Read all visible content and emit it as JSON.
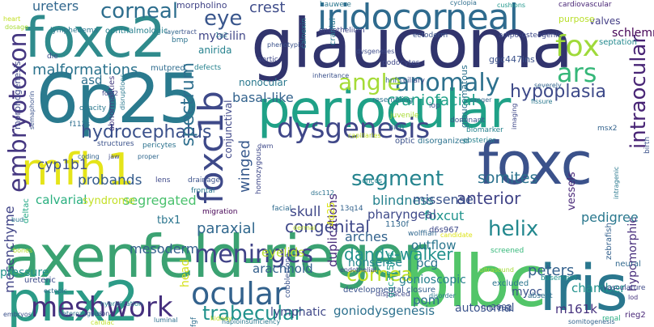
{
  "words": [
    {
      "text": "axenfeld-rieger",
      "color": "#3ba272"
    },
    {
      "text": "glaucoma",
      "color": "#31346d"
    },
    {
      "text": "6p25",
      "color": "#2a7a8e"
    },
    {
      "text": "foxc2",
      "color": "#2f8b8c"
    },
    {
      "text": "pitx2",
      "color": "#2c9b87"
    },
    {
      "text": "periocular",
      "color": "#1fa187"
    },
    {
      "text": "blbc",
      "color": "#52c569"
    },
    {
      "text": "iris",
      "color": "#2a778e"
    },
    {
      "text": "foxc",
      "color": "#3b528b"
    },
    {
      "text": "mfh1",
      "color": "#e5e419"
    },
    {
      "text": "iridocorneal",
      "color": "#2f6b8e"
    },
    {
      "text": "foxc1b",
      "color": "#3e4989"
    },
    {
      "text": "meshwork",
      "color": "#46307e"
    },
    {
      "text": "ocular",
      "color": "#33628d"
    },
    {
      "text": "dysgenesis",
      "color": "#3f4788"
    },
    {
      "text": "anomaly",
      "color": "#2d718e"
    },
    {
      "text": "meninges",
      "color": "#404387"
    },
    {
      "text": "embryotoxon",
      "color": "#453781"
    },
    {
      "text": "corneal",
      "color": "#2e6e8e"
    },
    {
      "text": "fox",
      "color": "#9fda3a"
    },
    {
      "text": "ars",
      "color": "#35b779"
    },
    {
      "text": "angle",
      "color": "#a5db36"
    },
    {
      "text": "eye",
      "color": "#39568c"
    },
    {
      "text": "segment",
      "color": "#25848e"
    },
    {
      "text": "cornea",
      "color": "#bddf26"
    },
    {
      "text": "hydrocephalus",
      "color": "#3b518b"
    },
    {
      "text": "intraocular",
      "color": "#482475"
    },
    {
      "text": "hypoplasia",
      "color": "#3e4a89"
    },
    {
      "text": "malformations",
      "color": "#2c738e"
    },
    {
      "text": "spectrum",
      "color": "#2e6f8e"
    },
    {
      "text": "congenital",
      "color": "#3f4889"
    },
    {
      "text": "paraxial",
      "color": "#31688e"
    },
    {
      "text": "trabecular",
      "color": "#20928c"
    },
    {
      "text": "helix",
      "color": "#23888e"
    },
    {
      "text": "dandy-walker",
      "color": "#21918c"
    },
    {
      "text": "anterior",
      "color": "#414487"
    },
    {
      "text": "somites",
      "color": "#2c728e"
    },
    {
      "text": "crest",
      "color": "#3e4c8a"
    },
    {
      "text": "peters",
      "color": "#34618d"
    },
    {
      "text": "winged",
      "color": "#37598c"
    },
    {
      "text": "skull",
      "color": "#3f4788"
    },
    {
      "text": "craniofacial",
      "color": "#1fa088"
    },
    {
      "text": "basal-like",
      "color": "#33638d"
    },
    {
      "text": "blindness",
      "color": "#26828e"
    },
    {
      "text": "cyp1b1",
      "color": "#3d4e8a"
    },
    {
      "text": "probands",
      "color": "#365d8d"
    },
    {
      "text": "calvarial",
      "color": "#29af7f"
    },
    {
      "text": "segregated",
      "color": "#4ac16d"
    },
    {
      "text": "pedigree",
      "color": "#2a788e"
    },
    {
      "text": "missense",
      "color": "#3a538b"
    },
    {
      "text": "foxcut",
      "color": "#20938c"
    },
    {
      "text": "schlemm",
      "color": "#440154"
    },
    {
      "text": "myocilin",
      "color": "#404688"
    },
    {
      "text": "asd",
      "color": "#2d708e"
    },
    {
      "text": "ureters",
      "color": "#31678e"
    },
    {
      "text": "mesenchyme",
      "color": "#414487"
    },
    {
      "text": "mesoderm",
      "color": "#34608d"
    },
    {
      "text": "arachnoid",
      "color": "#35608d"
    },
    {
      "text": "eyelids",
      "color": "#b5de2b"
    },
    {
      "text": "pharyngeal",
      "color": "#3e4989"
    },
    {
      "text": "arches",
      "color": "#33638d"
    },
    {
      "text": "outflow",
      "color": "#2a768e"
    },
    {
      "text": "nonsense",
      "color": "#25858e"
    },
    {
      "text": "pcg",
      "color": "#2b748e"
    },
    {
      "text": "duplications",
      "color": "#472c7a"
    },
    {
      "text": "gonioscopic",
      "color": "#27808e"
    },
    {
      "text": "autosomal",
      "color": "#3a538b"
    },
    {
      "text": "goniodysgenesis",
      "color": "#2d718e"
    },
    {
      "text": "lymphatic",
      "color": "#3f4788"
    },
    {
      "text": "myoc",
      "color": "#3b528b"
    },
    {
      "text": "chamber",
      "color": "#21918c"
    },
    {
      "text": "pom",
      "color": "#2e6e8e"
    },
    {
      "text": "m161k",
      "color": "#46327e"
    },
    {
      "text": "hypomorphic",
      "color": "#472d7b"
    },
    {
      "text": "pressure",
      "color": "#21918c"
    },
    {
      "text": "head",
      "color": "#d5e21a"
    },
    {
      "text": "tbx1",
      "color": "#2b758e"
    },
    {
      "text": "syndrome",
      "color": "#c2df23"
    },
    {
      "text": "nonocular",
      "color": "#2a788e"
    },
    {
      "text": "anirida",
      "color": "#26828e"
    },
    {
      "text": "conjunctival",
      "color": "#3f4889"
    },
    {
      "text": "vessels",
      "color": "#482878"
    },
    {
      "text": "valves",
      "color": "#433e85"
    },
    {
      "text": "purpose",
      "color": "#b8de29"
    },
    {
      "text": "morpholino",
      "color": "#414487"
    },
    {
      "text": "4q25",
      "color": "#d8e219"
    },
    {
      "text": "d6s967",
      "color": "#3e4989"
    },
    {
      "text": "1130f",
      "color": "#31688e"
    },
    {
      "text": "zebrafish",
      "color": "#34618d"
    },
    {
      "text": "ggc447ins",
      "color": "#3b528b"
    },
    {
      "text": "ggc375ins",
      "color": "#1f9e89"
    },
    {
      "text": "glaucomatous",
      "color": "#2c728e"
    },
    {
      "text": "deltac",
      "color": "#22a884"
    },
    {
      "text": "ophthalmologic",
      "color": "#27808e"
    },
    {
      "text": "lymphedema",
      "color": "#2a768e"
    },
    {
      "text": "nn2002",
      "color": "#3c4f8a"
    },
    {
      "text": "ectopic",
      "color": "#2f6c8e"
    },
    {
      "text": "ureteric",
      "color": "#3e4c8a"
    },
    {
      "text": "cardiovascular",
      "color": "#482576"
    },
    {
      "text": "cushions",
      "color": "#1f978b"
    },
    {
      "text": "hauwere",
      "color": "#2a768e"
    },
    {
      "text": "excluded",
      "color": "#2b748e"
    },
    {
      "text": "absent",
      "color": "#2e6f8e"
    },
    {
      "text": "basement",
      "color": "#20938c"
    },
    {
      "text": "developmental",
      "color": "#3a538b"
    },
    {
      "text": "closure",
      "color": "#34618d"
    },
    {
      "text": "septation",
      "color": "#23898e"
    },
    {
      "text": "morphogenesis",
      "color": "#3f4788"
    },
    {
      "text": "abnormalities",
      "color": "#44397f"
    },
    {
      "text": "embryos",
      "color": "#3b518b"
    },
    {
      "text": "renal",
      "color": "#27ad81"
    },
    {
      "text": "neural",
      "color": "#31688e"
    },
    {
      "text": "vasculature",
      "color": "#3e4989"
    },
    {
      "text": "lod",
      "color": "#46337e"
    },
    {
      "text": "rieg2",
      "color": "#482677"
    },
    {
      "text": "luminal",
      "color": "#2e6f8e"
    },
    {
      "text": "endothelium",
      "color": "#404588"
    },
    {
      "text": "podocytes",
      "color": "#3f4889"
    },
    {
      "text": "ectoderm",
      "color": "#3b528b"
    },
    {
      "text": "cranial",
      "color": "#2a788e"
    },
    {
      "text": "hnf3",
      "color": "#33638d"
    },
    {
      "text": "ciliary",
      "color": "#3e4c8a"
    },
    {
      "text": "juvenile",
      "color": "#a8db34"
    },
    {
      "text": "hith",
      "color": "#2f6c8e"
    },
    {
      "text": "optic",
      "color": "#3b528b"
    },
    {
      "text": "disorganized",
      "color": "#2c728e"
    },
    {
      "text": "posterior",
      "color": "#26828e"
    },
    {
      "text": "dominant",
      "color": "#3a548c"
    },
    {
      "text": "msx2",
      "color": "#33638d"
    },
    {
      "text": "cnccs",
      "color": "#26828e"
    },
    {
      "text": "wolffian",
      "color": "#31688e"
    },
    {
      "text": "lens",
      "color": "#3e4989"
    },
    {
      "text": "drainage",
      "color": "#3b528b"
    },
    {
      "text": "frontal",
      "color": "#2a788e"
    },
    {
      "text": "migration",
      "color": "#440154"
    },
    {
      "text": "homozygous",
      "color": "#3f4889"
    },
    {
      "text": "hybridization",
      "color": "#26828e"
    },
    {
      "text": "heterozygous",
      "color": "#2c728e"
    },
    {
      "text": "vision",
      "color": "#3e4c8a"
    },
    {
      "text": "haploinsufficiency",
      "color": "#2a788e"
    },
    {
      "text": "somitogenesis",
      "color": "#33638d"
    },
    {
      "text": "cardiac",
      "color": "#bddf26"
    },
    {
      "text": "fgf",
      "color": "#2e6e8e"
    },
    {
      "text": "tm1",
      "color": "#3b528b"
    },
    {
      "text": "displaced",
      "color": "#3e4989"
    },
    {
      "text": "endothelial",
      "color": "#404588"
    },
    {
      "text": "disorder",
      "color": "#2a788e"
    },
    {
      "text": "ultrasound",
      "color": "#a5db36"
    },
    {
      "text": "cobblestone",
      "color": "#3a548c"
    },
    {
      "text": "candidate",
      "color": "#dde318"
    },
    {
      "text": "facial",
      "color": "#2f6c8e"
    },
    {
      "text": "kidney",
      "color": "#c8e020"
    },
    {
      "text": "screened",
      "color": "#35b779"
    },
    {
      "text": "inheritance",
      "color": "#3b528b"
    },
    {
      "text": "resembling",
      "color": "#2c728e"
    },
    {
      "text": "dysgeneses",
      "color": "#3e4c8a"
    },
    {
      "text": "sanger",
      "color": "#31688e"
    },
    {
      "text": "severely",
      "color": "#33638d"
    },
    {
      "text": "fissure",
      "color": "#2a788e"
    },
    {
      "text": "imaging",
      "color": "#3f4889"
    },
    {
      "text": "iop",
      "color": "#3b528b"
    },
    {
      "text": "biomarker",
      "color": "#26828e"
    },
    {
      "text": "capillaries",
      "color": "#bddf26"
    },
    {
      "text": "cyclopia",
      "color": "#2e6e8e"
    },
    {
      "text": "adipo-osteogenic",
      "color": "#3e4989"
    },
    {
      "text": "1g2",
      "color": "#2a788e"
    },
    {
      "text": "bmp",
      "color": "#2c728e"
    },
    {
      "text": "layer",
      "color": "#31688e"
    },
    {
      "text": "tract",
      "color": "#3b528b"
    },
    {
      "text": "die",
      "color": "#3e4c8a"
    },
    {
      "text": "mutpred",
      "color": "#2f6c8e"
    },
    {
      "text": "defects",
      "color": "#26828e"
    },
    {
      "text": "aortic",
      "color": "#3f4889"
    },
    {
      "text": "opacity",
      "color": "#2a788e"
    },
    {
      "text": "structures",
      "color": "#3b528b"
    },
    {
      "text": "pericytes",
      "color": "#2c728e"
    },
    {
      "text": "coding",
      "color": "#33638d"
    },
    {
      "text": "jaw",
      "color": "#3e4989"
    },
    {
      "text": "proper",
      "color": "#31688e"
    },
    {
      "text": "bud",
      "color": "#2a788e"
    },
    {
      "text": "bones",
      "color": "#b5de2b"
    },
    {
      "text": "semaphorin",
      "color": "#3b528b"
    },
    {
      "text": "f112s",
      "color": "#2e6e8e"
    },
    {
      "text": "foxf2",
      "color": "#3f4889"
    },
    {
      "text": "disruptions",
      "color": "#2a788e"
    },
    {
      "text": "heart",
      "color": "#c2df23"
    },
    {
      "text": "dosage",
      "color": "#a8db34"
    },
    {
      "text": "calnexin",
      "color": "#2a788e"
    },
    {
      "text": "phenotypic",
      "color": "#3b528b"
    },
    {
      "text": "dermal",
      "color": "#bddf26"
    },
    {
      "text": "dwm",
      "color": "#3e4989"
    },
    {
      "text": "dsc112",
      "color": "#2c728e"
    },
    {
      "text": "13q14",
      "color": "#33638d"
    },
    {
      "text": "intragenic",
      "color": "#2a788e"
    },
    {
      "text": "birth",
      "color": "#3b528b"
    }
  ]
}
